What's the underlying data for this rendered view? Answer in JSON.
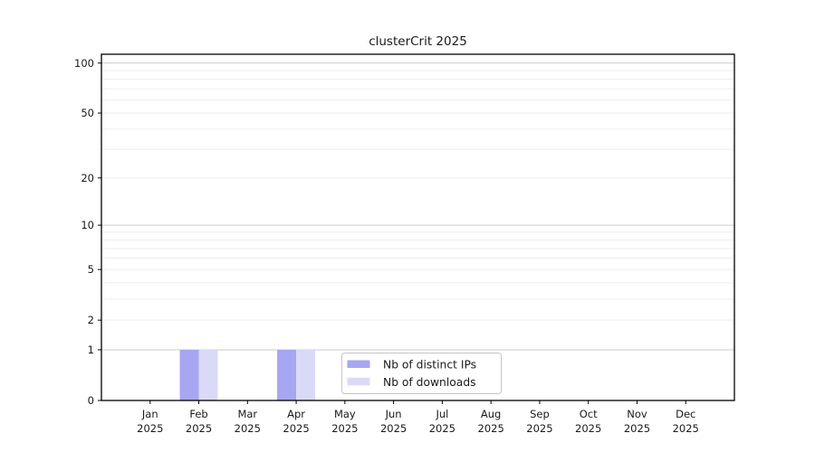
{
  "chart_data": {
    "type": "bar",
    "title": "clusterCrit 2025",
    "scale": "log1p",
    "categories": [
      "Jan 2025",
      "Feb 2025",
      "Mar 2025",
      "Apr 2025",
      "May 2025",
      "Jun 2025",
      "Jul 2025",
      "Aug 2025",
      "Sep 2025",
      "Oct 2025",
      "Nov 2025",
      "Dec 2025"
    ],
    "series": [
      {
        "name": "Nb of distinct IPs",
        "color": "#a6a6f2",
        "values": [
          0,
          1,
          0,
          1,
          0,
          0,
          0,
          0,
          0,
          0,
          0,
          0
        ]
      },
      {
        "name": "Nb of downloads",
        "color": "#dadaf8",
        "values": [
          0,
          1,
          0,
          1,
          0,
          0,
          0,
          0,
          0,
          0,
          0,
          0
        ]
      }
    ],
    "yticks": [
      0,
      1,
      2,
      5,
      10,
      20,
      50,
      100
    ],
    "gridlines_major": [
      1,
      10,
      100
    ],
    "gridlines_minor": [
      2,
      3,
      4,
      5,
      6,
      7,
      8,
      9,
      20,
      30,
      40,
      50,
      60,
      70,
      80,
      90
    ],
    "ylim": [
      0,
      113
    ],
    "xlabel": "",
    "ylabel": "",
    "grid": true,
    "legend_position": "lower center"
  },
  "colors": {
    "background": "#ffffff",
    "spine": "#000000",
    "grid_major": "#cbcbcb",
    "grid_minor": "#ededed",
    "text": "#1a1a1a",
    "legend_border": "#c4c4c4",
    "legend_fill": "#ffffff"
  }
}
